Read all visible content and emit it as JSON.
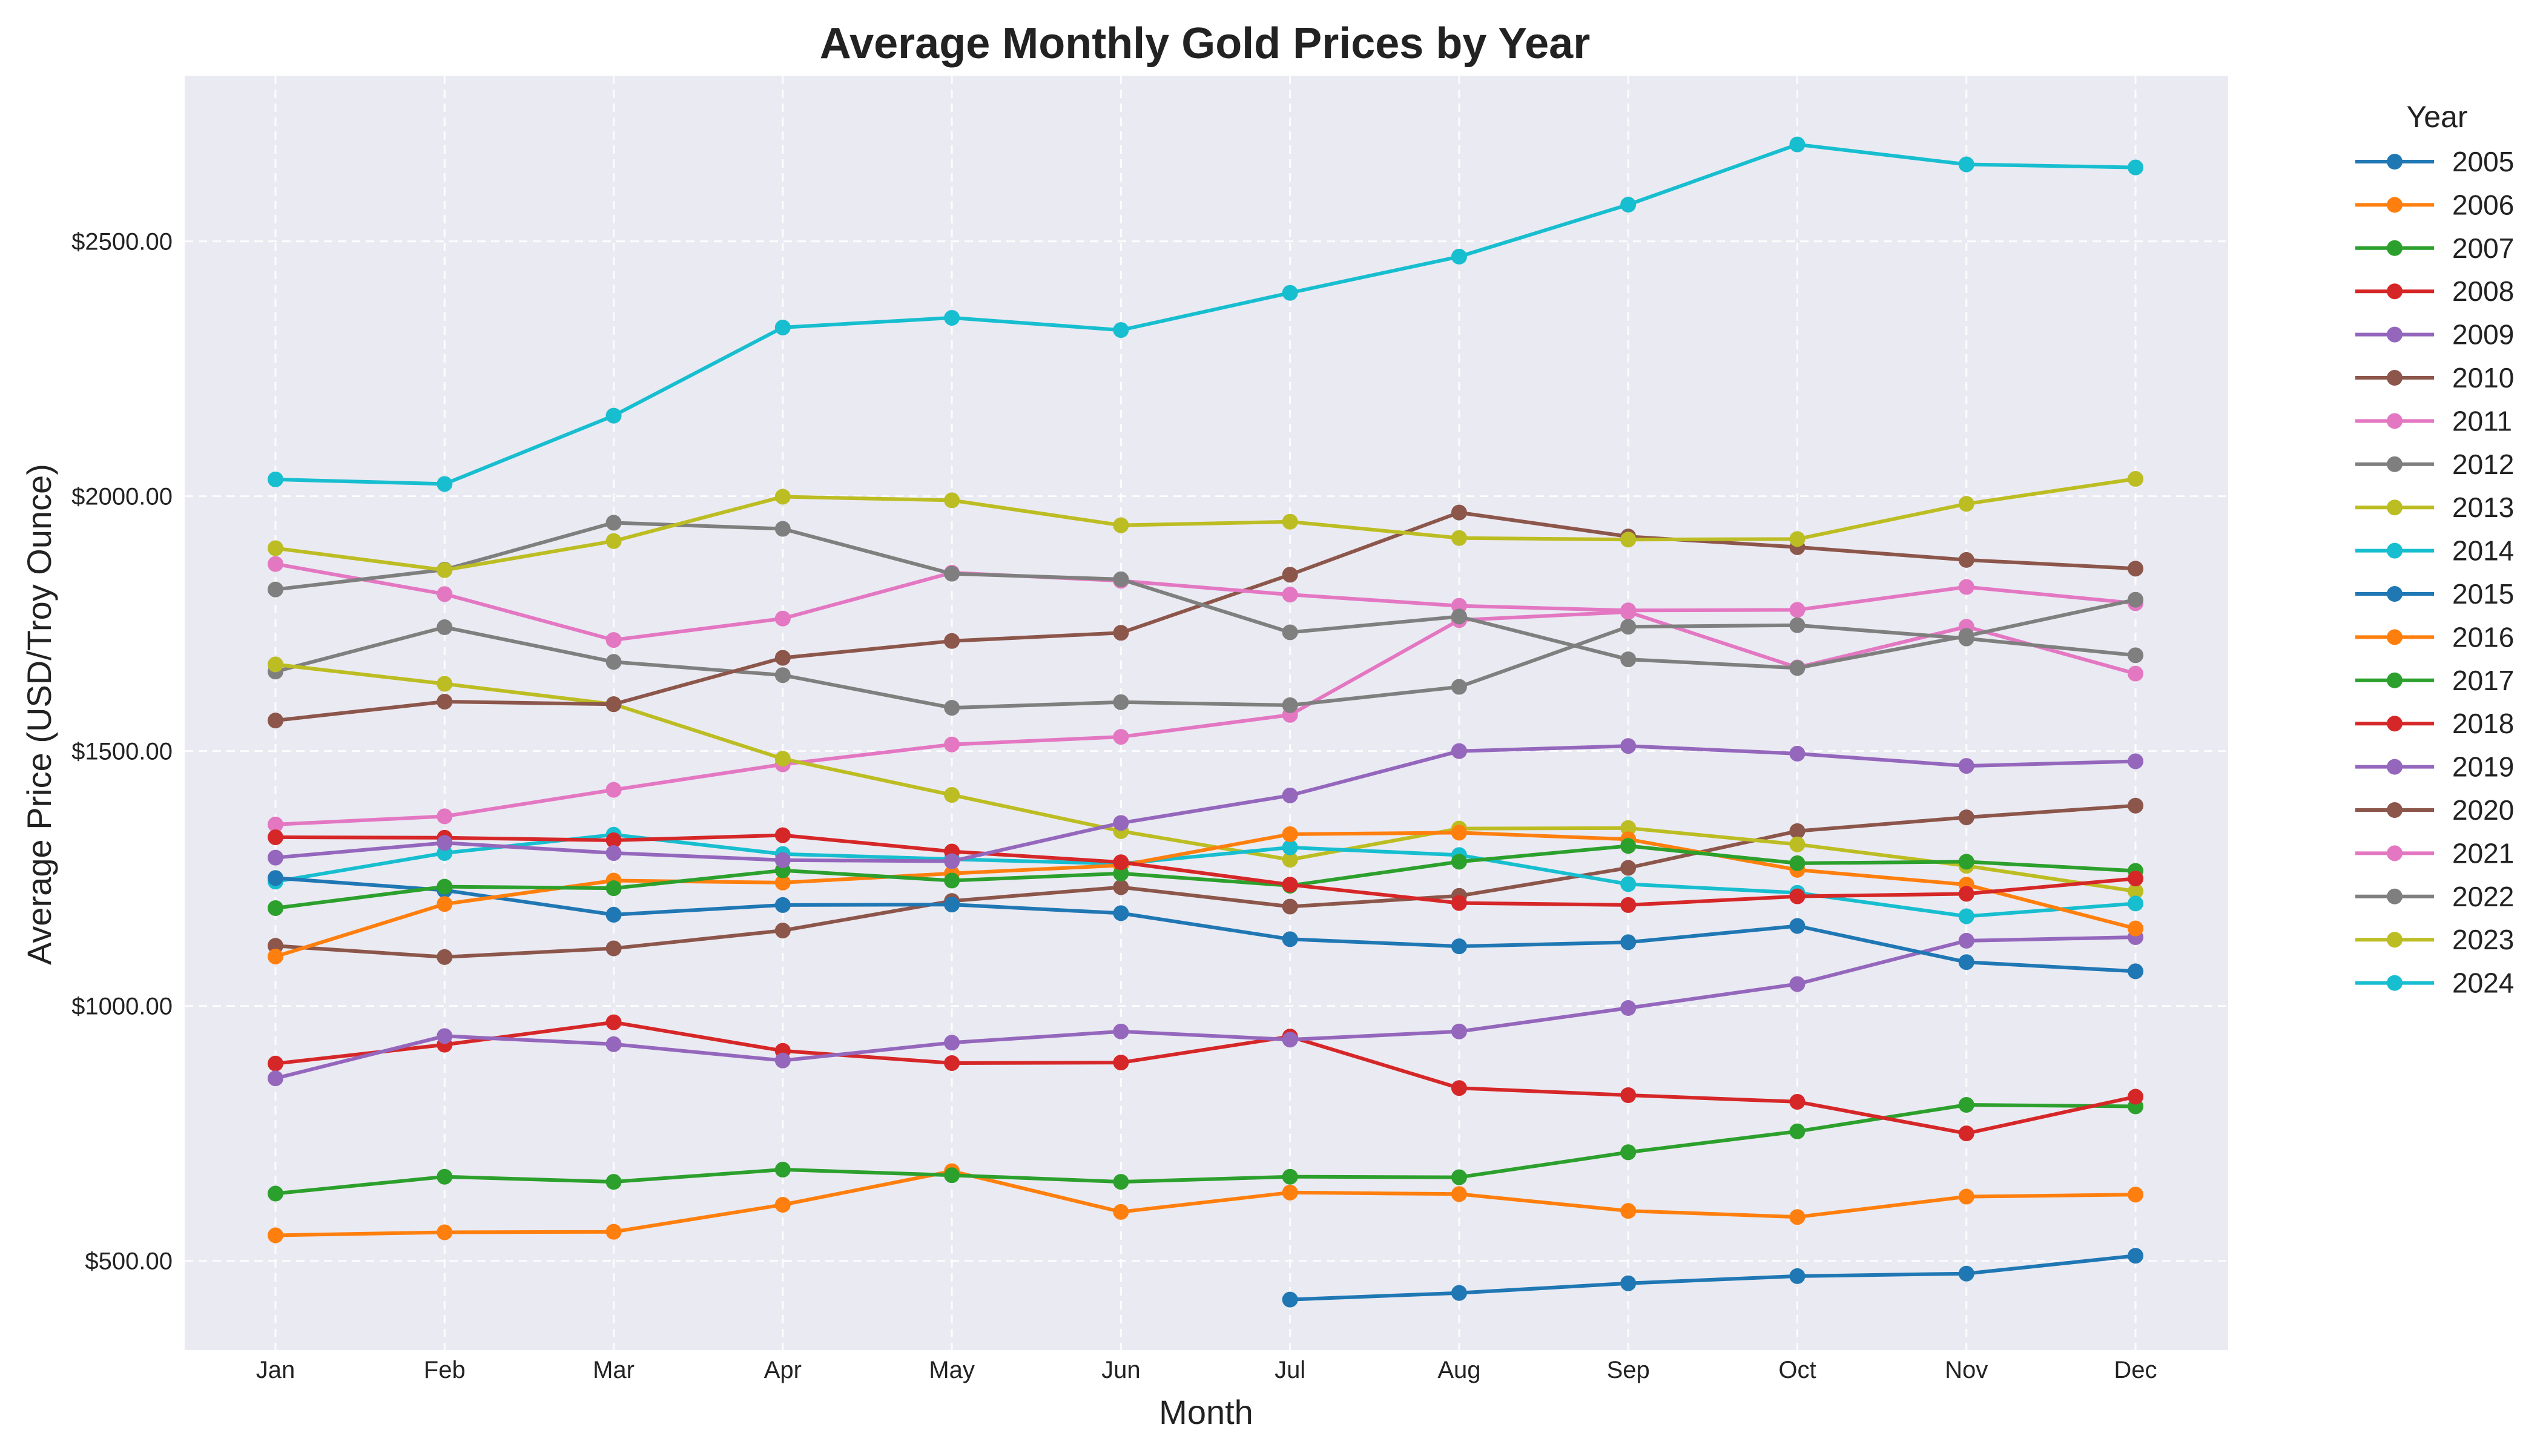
{
  "chart_data": {
    "type": "line",
    "title": "Average Monthly Gold Prices by Year",
    "xlabel": "Month",
    "ylabel": "Average Price (USD/Troy Ounce)",
    "categories": [
      "Jan",
      "Feb",
      "Mar",
      "Apr",
      "May",
      "Jun",
      "Jul",
      "Aug",
      "Sep",
      "Oct",
      "Nov",
      "Dec"
    ],
    "ylim": [
      325,
      2825
    ],
    "yticks": [
      500,
      1000,
      1500,
      2000,
      2500
    ],
    "ytick_labels": [
      "$500.00",
      "$1000.00",
      "$1500.00",
      "$2000.00",
      "$2500.00"
    ],
    "grid": true,
    "legend_title": "Year",
    "legend_position": "outside-right",
    "plot_background": "#eaeaf2",
    "series": [
      {
        "name": "2005",
        "color": "#1f77b4",
        "values": [
          null,
          null,
          null,
          null,
          null,
          null,
          424,
          437,
          456,
          470,
          475,
          510
        ]
      },
      {
        "name": "2006",
        "color": "#ff7f0e",
        "values": [
          550,
          556,
          557,
          610,
          676,
          596,
          634,
          631,
          598,
          586,
          626,
          630
        ]
      },
      {
        "name": "2007",
        "color": "#2ca02c",
        "values": [
          632,
          665,
          655,
          679,
          668,
          655,
          665,
          664,
          713,
          754,
          806,
          803
        ]
      },
      {
        "name": "2008",
        "color": "#d62728",
        "values": [
          887,
          924,
          968,
          912,
          888,
          889,
          940,
          839,
          825,
          812,
          750,
          822
        ]
      },
      {
        "name": "2009",
        "color": "#9467bd",
        "values": [
          858,
          941,
          925,
          893,
          928,
          950,
          934,
          950,
          996,
          1043,
          1128,
          1135
        ]
      },
      {
        "name": "2010",
        "color": "#8c564b",
        "values": [
          1118,
          1096,
          1113,
          1148,
          1206,
          1233,
          1195,
          1216,
          1271,
          1343,
          1370,
          1393
        ]
      },
      {
        "name": "2011",
        "color": "#e377c2",
        "values": [
          1356,
          1372,
          1424,
          1474,
          1513,
          1528,
          1571,
          1757,
          1773,
          1664,
          1744,
          1652
        ]
      },
      {
        "name": "2012",
        "color": "#7f7f7f",
        "values": [
          1656,
          1743,
          1675,
          1649,
          1585,
          1596,
          1590,
          1626,
          1744,
          1747,
          1721,
          1688
        ]
      },
      {
        "name": "2013",
        "color": "#bcbd22",
        "values": [
          1670,
          1632,
          1592,
          1485,
          1414,
          1343,
          1287,
          1348,
          1349,
          1317,
          1275,
          1225
        ]
      },
      {
        "name": "2014",
        "color": "#17becf",
        "values": [
          1244,
          1300,
          1336,
          1298,
          1288,
          1279,
          1311,
          1296,
          1239,
          1222,
          1176,
          1201
        ]
      },
      {
        "name": "2015",
        "color": "#1f77b4",
        "values": [
          1251,
          1227,
          1179,
          1198,
          1199,
          1182,
          1131,
          1117,
          1125,
          1157,
          1086,
          1068
        ]
      },
      {
        "name": "2016",
        "color": "#ff7f0e",
        "values": [
          1097,
          1200,
          1246,
          1242,
          1260,
          1276,
          1337,
          1340,
          1327,
          1267,
          1238,
          1152
        ]
      },
      {
        "name": "2017",
        "color": "#2ca02c",
        "values": [
          1192,
          1234,
          1231,
          1266,
          1246,
          1260,
          1236,
          1283,
          1314,
          1280,
          1283,
          1265
        ]
      },
      {
        "name": "2018",
        "color": "#d62728",
        "values": [
          1331,
          1330,
          1325,
          1335,
          1303,
          1282,
          1238,
          1202,
          1198,
          1215,
          1220,
          1250
        ]
      },
      {
        "name": "2019",
        "color": "#9467bd",
        "values": [
          1291,
          1320,
          1300,
          1286,
          1284,
          1359,
          1413,
          1500,
          1510,
          1495,
          1471,
          1480
        ]
      },
      {
        "name": "2020",
        "color": "#8c564b",
        "values": [
          1560,
          1597,
          1592,
          1683,
          1716,
          1732,
          1846,
          1968,
          1921,
          1900,
          1875,
          1858
        ]
      },
      {
        "name": "2021",
        "color": "#e377c2",
        "values": [
          1867,
          1808,
          1718,
          1760,
          1850,
          1834,
          1807,
          1785,
          1776,
          1777,
          1822,
          1790
        ]
      },
      {
        "name": "2022",
        "color": "#7f7f7f",
        "values": [
          1817,
          1856,
          1948,
          1936,
          1848,
          1837,
          1733,
          1764,
          1680,
          1663,
          1726,
          1797
        ]
      },
      {
        "name": "2023",
        "color": "#bcbd22",
        "values": [
          1898,
          1855,
          1912,
          1999,
          1992,
          1943,
          1950,
          1918,
          1915,
          1916,
          1985,
          2034
        ]
      },
      {
        "name": "2024",
        "color": "#17becf",
        "values": [
          2033,
          2024,
          2158,
          2331,
          2350,
          2326,
          2399,
          2470,
          2572,
          2690,
          2651,
          2645
        ]
      }
    ]
  }
}
